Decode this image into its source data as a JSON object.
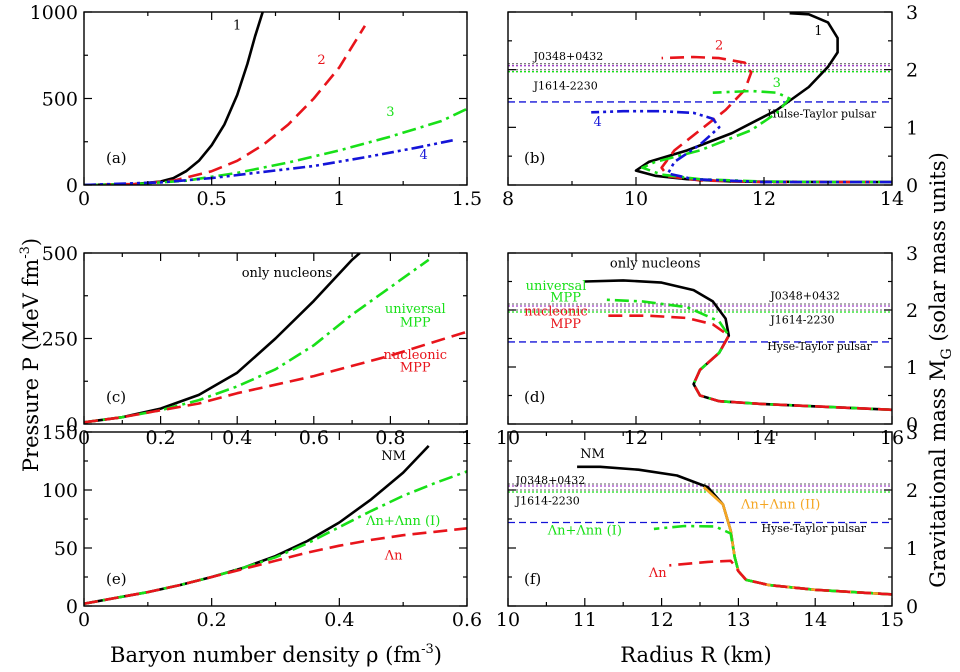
{
  "figure": {
    "ylabel_left": "Pressure P (MeV fm",
    "ylabel_left_exp": "-3",
    "ylabel_left_close": ")",
    "ylabel_right": "Gravitational mass M",
    "ylabel_right_sub": "G",
    "ylabel_right_tail": " (solar mass units)",
    "xlabel_left": "Baryon number density ρ (fm",
    "xlabel_left_exp": "-3",
    "xlabel_left_close": ")",
    "xlabel_right": "Radius R (km)"
  },
  "colors": {
    "black": "#000000",
    "red": "#e8141b",
    "green": "#18e018",
    "blue": "#1414d8",
    "orange": "#f5a623",
    "gray": "#808080",
    "purple": "#a040c8"
  },
  "chart_data": [
    {
      "id": "a",
      "type": "line",
      "panel_label": "(a)",
      "xlim": [
        0,
        1.5
      ],
      "ylim": [
        0,
        1000
      ],
      "xticks": [
        0,
        0.5,
        1,
        1.5
      ],
      "xtick_labels": [
        "0",
        "0.5",
        "1",
        "1.5"
      ],
      "yticks": [
        0,
        500,
        1000
      ],
      "ytick_labels": [
        "0",
        "500",
        "1000"
      ],
      "series": [
        {
          "name": "1",
          "color": "black",
          "style": "solid",
          "label_at": [
            0.6,
            900
          ],
          "x": [
            0,
            0.2,
            0.3,
            0.35,
            0.4,
            0.45,
            0.5,
            0.55,
            0.6,
            0.64,
            0.67,
            0.7
          ],
          "y": [
            0,
            5,
            20,
            40,
            80,
            140,
            230,
            350,
            520,
            700,
            860,
            1000
          ]
        },
        {
          "name": "2",
          "color": "red",
          "style": "dashed",
          "label_at": [
            0.93,
            700
          ],
          "x": [
            0,
            0.2,
            0.35,
            0.5,
            0.6,
            0.7,
            0.8,
            0.9,
            1.0,
            1.05,
            1.1
          ],
          "y": [
            0,
            5,
            25,
            80,
            140,
            230,
            350,
            500,
            680,
            800,
            920
          ]
        },
        {
          "name": "3",
          "color": "green",
          "style": "dashdot",
          "label_at": [
            1.2,
            400
          ],
          "x": [
            0,
            0.2,
            0.4,
            0.6,
            0.8,
            1.0,
            1.2,
            1.4,
            1.5
          ],
          "y": [
            0,
            5,
            25,
            70,
            130,
            200,
            280,
            370,
            440
          ]
        },
        {
          "name": "4",
          "color": "blue",
          "style": "dashdotdot",
          "label_at": [
            1.33,
            150
          ],
          "x": [
            0,
            0.3,
            0.5,
            0.7,
            0.9,
            1.1,
            1.3,
            1.45
          ],
          "y": [
            0,
            15,
            40,
            75,
            110,
            160,
            215,
            260
          ]
        }
      ],
      "annotations": []
    },
    {
      "id": "b",
      "type": "line",
      "panel_label": "(b)",
      "xlim": [
        8,
        14
      ],
      "ylim": [
        0,
        3
      ],
      "xticks": [
        8,
        10,
        12,
        14
      ],
      "xtick_labels": [
        "8",
        "10",
        "12",
        "14"
      ],
      "yticks": [
        0,
        1,
        2,
        3
      ],
      "ytick_labels": [
        "0",
        "1",
        "2",
        "3"
      ],
      "hbands": [
        {
          "y": 2.01,
          "label": "J0348+0432",
          "label_x": 8.4
        },
        {
          "y": 1.97,
          "label": "J1614-2230",
          "label_x": 8.4
        }
      ],
      "hdash": {
        "y": 1.44,
        "label": "Hulse-Taylor pulsar",
        "label_x": 12.05,
        "label_y": 1.17
      },
      "series": [
        {
          "name": "1",
          "color": "black",
          "style": "solid",
          "label_at": [
            12.85,
            2.6
          ],
          "x": [
            14,
            13.0,
            11.5,
            10.8,
            10.3,
            10.0,
            10.2,
            10.8,
            11.5,
            12.2,
            12.7,
            13.0,
            13.15,
            13.15,
            13.0,
            12.7,
            12.4
          ],
          "y": [
            0.05,
            0.05,
            0.06,
            0.1,
            0.16,
            0.25,
            0.4,
            0.6,
            0.9,
            1.3,
            1.7,
            2.05,
            2.3,
            2.55,
            2.82,
            2.96,
            2.98
          ]
        },
        {
          "name": "2",
          "color": "red",
          "style": "dashed",
          "label_at": [
            11.3,
            2.35
          ],
          "x": [
            14,
            12.0,
            11.0,
            10.5,
            10.4,
            10.6,
            11.0,
            11.4,
            11.7,
            11.8,
            11.7,
            11.3,
            10.9,
            10.4
          ],
          "y": [
            0.05,
            0.05,
            0.08,
            0.15,
            0.3,
            0.6,
            0.95,
            1.3,
            1.65,
            1.95,
            2.12,
            2.2,
            2.22,
            2.2
          ]
        },
        {
          "name": "3",
          "color": "green",
          "style": "dashdot",
          "label_at": [
            12.2,
            1.7
          ],
          "x": [
            14,
            13.0,
            12.0,
            11.0,
            10.4,
            10.1,
            10.3,
            11.0,
            11.8,
            12.2,
            12.4,
            12.2,
            11.8,
            11.2
          ],
          "y": [
            0.05,
            0.05,
            0.06,
            0.1,
            0.18,
            0.3,
            0.4,
            0.6,
            0.95,
            1.25,
            1.5,
            1.6,
            1.63,
            1.6
          ]
        },
        {
          "name": "4",
          "color": "blue",
          "style": "dashdotdot",
          "label_at": [
            9.4,
            1.02
          ],
          "x": [
            14,
            12.0,
            10.9,
            10.5,
            10.6,
            11.0,
            11.3,
            11.2,
            10.9,
            10.4,
            9.8,
            9.3
          ],
          "y": [
            0.05,
            0.05,
            0.1,
            0.2,
            0.4,
            0.7,
            1.0,
            1.15,
            1.25,
            1.28,
            1.28,
            1.26
          ]
        }
      ],
      "annotations": []
    },
    {
      "id": "c",
      "type": "line",
      "panel_label": "(c)",
      "xlim": [
        0,
        1
      ],
      "ylim": [
        0,
        500
      ],
      "xticks": [
        0,
        0.2,
        0.4,
        0.6,
        0.8,
        1
      ],
      "xtick_labels": [
        "0",
        "0.2",
        "0.4",
        "0.6",
        "0.8",
        "1"
      ],
      "yticks": [
        0,
        250,
        500
      ],
      "ytick_labels": [
        "0",
        "250",
        "500"
      ],
      "series": [
        {
          "name": "only nucleons",
          "color": "black",
          "style": "solid",
          "x": [
            0,
            0.1,
            0.2,
            0.3,
            0.4,
            0.5,
            0.6,
            0.7,
            0.72
          ],
          "y": [
            5,
            20,
            45,
            85,
            150,
            250,
            360,
            480,
            500
          ]
        },
        {
          "name": "universal MPP",
          "color": "green",
          "style": "dashdot",
          "x": [
            0,
            0.1,
            0.2,
            0.3,
            0.4,
            0.5,
            0.6,
            0.7,
            0.8,
            0.9
          ],
          "y": [
            5,
            20,
            40,
            70,
            110,
            160,
            230,
            320,
            400,
            480
          ]
        },
        {
          "name": "nucleonic MPP",
          "color": "red",
          "style": "dashed",
          "x": [
            0,
            0.1,
            0.2,
            0.3,
            0.4,
            0.5,
            0.6,
            0.7,
            0.8,
            0.9,
            1.0
          ],
          "y": [
            5,
            20,
            40,
            60,
            90,
            115,
            140,
            170,
            200,
            235,
            270
          ]
        }
      ],
      "annotations": [
        {
          "text": "only nucleons",
          "x": 0.53,
          "y": 430,
          "color": "black"
        },
        {
          "text": "universal",
          "x": 0.865,
          "y": 325,
          "color": "green"
        },
        {
          "text": "MPP",
          "x": 0.865,
          "y": 285,
          "color": "green"
        },
        {
          "text": "nucleonic",
          "x": 0.865,
          "y": 190,
          "color": "red"
        },
        {
          "text": "MPP",
          "x": 0.865,
          "y": 153,
          "color": "red"
        }
      ]
    },
    {
      "id": "d",
      "type": "line",
      "panel_label": "(d)",
      "xlim": [
        10,
        16
      ],
      "ylim": [
        0,
        3
      ],
      "xticks": [
        10,
        12,
        14,
        16
      ],
      "xtick_labels": [
        "10",
        "12",
        "14",
        "16"
      ],
      "yticks": [
        0,
        1,
        2,
        3
      ],
      "ytick_labels": [
        "0",
        "1",
        "2",
        "3"
      ],
      "hbands": [
        {
          "y": 2.01,
          "label": "J0348+0432",
          "label_x": 14.1,
          "label_y": 2.18
        },
        {
          "y": 1.97,
          "label": "J1614-2230",
          "label_x": 14.1,
          "label_y": 1.76
        }
      ],
      "hdash": {
        "y": 1.44,
        "label": "Hyse-Taylor pulsar",
        "label_x": 14.05,
        "label_y": 1.3
      },
      "series": [
        {
          "name": "only nucleons",
          "color": "black",
          "style": "solid",
          "x": [
            16,
            15.0,
            14.0,
            13.3,
            13.0,
            12.9,
            13.0,
            13.3,
            13.45,
            13.4,
            13.2,
            12.9,
            12.4,
            11.8,
            11.2
          ],
          "y": [
            0.25,
            0.3,
            0.35,
            0.4,
            0.5,
            0.7,
            0.95,
            1.25,
            1.55,
            1.85,
            2.15,
            2.35,
            2.48,
            2.52,
            2.5
          ]
        },
        {
          "name": "universal MPP",
          "color": "green",
          "style": "dashdot",
          "x": [
            16,
            15.0,
            14.0,
            13.3,
            13.0,
            12.9,
            13.0,
            13.3,
            13.45,
            13.3,
            12.8,
            12.1,
            11.5
          ],
          "y": [
            0.25,
            0.3,
            0.35,
            0.4,
            0.5,
            0.7,
            0.95,
            1.25,
            1.55,
            1.8,
            2.05,
            2.15,
            2.18
          ]
        },
        {
          "name": "nucleonic MPP",
          "color": "red",
          "style": "dashed",
          "x": [
            16,
            15.0,
            14.0,
            13.3,
            13.0,
            12.9,
            13.0,
            13.3,
            13.45,
            13.2,
            12.8,
            12.2,
            11.5
          ],
          "y": [
            0.25,
            0.3,
            0.35,
            0.4,
            0.5,
            0.7,
            0.95,
            1.25,
            1.55,
            1.75,
            1.86,
            1.9,
            1.9
          ]
        }
      ],
      "annotations": [
        {
          "text": "only nucleons",
          "x": 12.3,
          "y": 2.75,
          "color": "black"
        },
        {
          "text": "universal",
          "x": 10.75,
          "y": 2.35,
          "color": "green"
        },
        {
          "text": "MPP",
          "x": 10.9,
          "y": 2.15,
          "color": "green"
        },
        {
          "text": "nucleonic",
          "x": 10.75,
          "y": 1.9,
          "color": "red"
        },
        {
          "text": "MPP",
          "x": 10.9,
          "y": 1.68,
          "color": "red"
        }
      ]
    },
    {
      "id": "e",
      "type": "line",
      "panel_label": "(e)",
      "xlim": [
        0,
        0.6
      ],
      "ylim": [
        0,
        150
      ],
      "xticks": [
        0,
        0.2,
        0.4,
        0.6
      ],
      "xtick_labels": [
        "0",
        "0.2",
        "0.4",
        "0.6"
      ],
      "yticks": [
        0,
        50,
        100,
        150
      ],
      "ytick_labels": [
        "0",
        "50",
        "100",
        "150"
      ],
      "series": [
        {
          "name": "NM",
          "color": "black",
          "style": "solid",
          "x": [
            0,
            0.05,
            0.1,
            0.15,
            0.2,
            0.25,
            0.3,
            0.35,
            0.4,
            0.45,
            0.5,
            0.54
          ],
          "y": [
            2,
            7,
            12,
            18,
            25,
            33,
            43,
            56,
            72,
            92,
            115,
            138
          ]
        },
        {
          "name": "Λn+Λnn (I)",
          "color": "green",
          "style": "dashdot",
          "x": [
            0,
            0.05,
            0.1,
            0.15,
            0.2,
            0.25,
            0.3,
            0.35,
            0.4,
            0.45,
            0.5,
            0.55,
            0.6
          ],
          "y": [
            2,
            7,
            12,
            18,
            25,
            33,
            42,
            54,
            68,
            82,
            95,
            106,
            116
          ]
        },
        {
          "name": "Λn",
          "color": "red",
          "style": "dashed",
          "x": [
            0,
            0.05,
            0.1,
            0.15,
            0.2,
            0.25,
            0.3,
            0.35,
            0.4,
            0.45,
            0.5,
            0.55,
            0.6
          ],
          "y": [
            2,
            7,
            12,
            18,
            25,
            32,
            39,
            46,
            52,
            57,
            61,
            64,
            67
          ]
        }
      ],
      "annotations": [
        {
          "text": "NM",
          "x": 0.485,
          "y": 126,
          "color": "black"
        },
        {
          "text": "Λn+Λnn (I)",
          "x": 0.5,
          "y": 70,
          "color": "green"
        },
        {
          "text": "Λn",
          "x": 0.485,
          "y": 40,
          "color": "red"
        }
      ]
    },
    {
      "id": "f",
      "type": "line",
      "panel_label": "(f)",
      "xlim": [
        10,
        15
      ],
      "ylim": [
        0,
        3
      ],
      "xticks": [
        10,
        11,
        12,
        13,
        14,
        15
      ],
      "xtick_labels": [
        "10",
        "11",
        "12",
        "13",
        "14",
        "15"
      ],
      "yticks": [
        0,
        1,
        2,
        3
      ],
      "ytick_labels": [
        "0",
        "1",
        "2",
        "3"
      ],
      "hbands": [
        {
          "y": 2.01,
          "label": "J0348+0432",
          "label_x": 10.1,
          "label_y": 2.1
        },
        {
          "y": 1.97,
          "label": "J1614-2230",
          "label_x": 10.1,
          "label_y": 1.75
        }
      ],
      "hdash": {
        "y": 1.44,
        "label": "Hyse-Taylor pulsar",
        "label_x": 13.3,
        "label_y": 1.28
      },
      "series": [
        {
          "name": "NM",
          "color": "black",
          "style": "solid",
          "x": [
            15,
            14.0,
            13.4,
            13.1,
            13.0,
            12.95,
            12.9,
            12.8,
            12.6,
            12.2,
            11.7,
            11.2,
            10.9
          ],
          "y": [
            0.2,
            0.28,
            0.36,
            0.45,
            0.6,
            0.85,
            1.3,
            1.75,
            2.05,
            2.25,
            2.35,
            2.4,
            2.4
          ]
        },
        {
          "name": "Λn+Λnn (II)",
          "color": "orange",
          "style": "solid",
          "x": [
            15,
            14.0,
            13.4,
            13.1,
            13.0,
            12.95,
            12.9,
            12.8,
            12.55
          ],
          "y": [
            0.2,
            0.28,
            0.36,
            0.45,
            0.6,
            0.85,
            1.3,
            1.75,
            2.05
          ]
        },
        {
          "name": "Λn+Λnn (I)",
          "color": "green",
          "style": "dashdot",
          "x": [
            15,
            14.0,
            13.4,
            13.1,
            13.0,
            12.95,
            12.9,
            12.7,
            12.3,
            11.9
          ],
          "y": [
            0.2,
            0.28,
            0.36,
            0.45,
            0.6,
            0.85,
            1.25,
            1.37,
            1.38,
            1.33
          ]
        },
        {
          "name": "Λn",
          "color": "red",
          "style": "dashed",
          "x": [
            15,
            14.0,
            13.4,
            13.1,
            13.0,
            12.95,
            12.9,
            12.6,
            12.1
          ],
          "y": [
            0.2,
            0.28,
            0.36,
            0.45,
            0.6,
            0.7,
            0.78,
            0.76,
            0.7
          ]
        }
      ],
      "annotations": [
        {
          "text": "NM",
          "x": 11.1,
          "y": 2.55,
          "color": "black"
        },
        {
          "text": "Λn+Λnn (II)",
          "x": 13.55,
          "y": 1.68,
          "color": "orange"
        },
        {
          "text": "Λn+Λnn (I)",
          "x": 11.0,
          "y": 1.23,
          "color": "green"
        },
        {
          "text": "Λn",
          "x": 11.95,
          "y": 0.5,
          "color": "red"
        }
      ]
    }
  ]
}
